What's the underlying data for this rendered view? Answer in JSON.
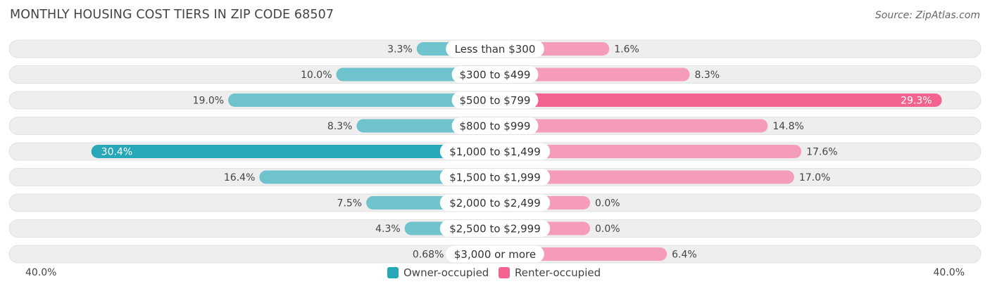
{
  "title": "MONTHLY HOUSING COST TIERS IN ZIP CODE 68507",
  "source": "Source: ZipAtlas.com",
  "colors": {
    "owner": "#6ec3cc",
    "owner_strong": "#27a7b8",
    "renter": "#f59cbb",
    "renter_strong": "#f2648f",
    "row_bg": "#eeeeee"
  },
  "chart_data": {
    "type": "bar",
    "orientation": "horizontal-diverging",
    "categories": [
      "Less than $300",
      "$300 to $499",
      "$500 to $799",
      "$800 to $999",
      "$1,000 to $1,499",
      "$1,500 to $1,999",
      "$2,000 to $2,499",
      "$2,500 to $2,999",
      "$3,000 or more"
    ],
    "series": [
      {
        "name": "Owner-occupied",
        "values": [
          3.3,
          10.0,
          19.0,
          8.3,
          30.4,
          16.4,
          7.5,
          4.3,
          0.68
        ],
        "labels": [
          "3.3%",
          "10.0%",
          "19.0%",
          "8.3%",
          "30.4%",
          "16.4%",
          "7.5%",
          "4.3%",
          "0.68%"
        ]
      },
      {
        "name": "Renter-occupied",
        "values": [
          1.6,
          8.3,
          29.3,
          14.8,
          17.6,
          17.0,
          0.0,
          0.0,
          6.4
        ],
        "labels": [
          "1.6%",
          "8.3%",
          "29.3%",
          "14.8%",
          "17.6%",
          "17.0%",
          "0.0%",
          "0.0%",
          "6.4%"
        ]
      }
    ],
    "xlim": [
      -40,
      40
    ],
    "axis_labels": {
      "left": "40.0%",
      "right": "40.0%"
    },
    "legend_position": "bottom-center"
  }
}
